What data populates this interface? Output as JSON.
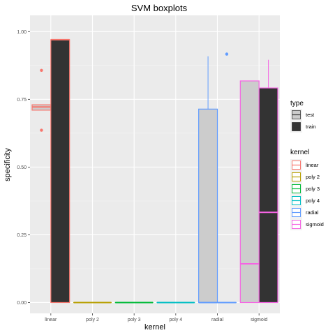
{
  "chart_data": {
    "type": "boxplot",
    "title": "SVM boxplots",
    "xlabel": "kernel",
    "ylabel": "specificity",
    "ylim": [
      -0.04,
      1.06
    ],
    "y_ticks": [
      0,
      0.25,
      0.5,
      0.75,
      1
    ],
    "y_tick_labels": [
      "0.00",
      "0.25",
      "0.50",
      "0.75",
      "1.00"
    ],
    "grid": true,
    "legend_position": "right",
    "categories": [
      "linear",
      "poly 2",
      "poly 3",
      "poly 4",
      "radial",
      "sigmoid"
    ],
    "fill_legend": {
      "title": "type",
      "entries": [
        {
          "label": "test",
          "fill": "#cccccc"
        },
        {
          "label": "train",
          "fill": "#333333"
        }
      ]
    },
    "color_legend": {
      "title": "kernel",
      "entries": [
        {
          "label": "linear",
          "color": "#f8766d"
        },
        {
          "label": "poly 2",
          "color": "#b79f00"
        },
        {
          "label": "poly 3",
          "color": "#00ba38"
        },
        {
          "label": "poly 4",
          "color": "#00bfc4"
        },
        {
          "label": "radial",
          "color": "#619cff"
        },
        {
          "label": "sigmoid",
          "color": "#f564e3"
        }
      ]
    },
    "boxes": [
      {
        "kernel": "linear",
        "type": "test",
        "min": 0.71,
        "q1": 0.71,
        "median": 0.722,
        "q3": 0.73,
        "max": 0.73,
        "outliers": [
          0.857,
          0.636
        ]
      },
      {
        "kernel": "linear",
        "type": "train",
        "min": 0,
        "q1": 0,
        "median": 0.97,
        "q3": 0.97,
        "max": 0.97,
        "outliers": []
      },
      {
        "kernel": "poly 2",
        "type": "test",
        "min": 0,
        "q1": 0,
        "median": 0,
        "q3": 0,
        "max": 0,
        "outliers": []
      },
      {
        "kernel": "poly 2",
        "type": "train",
        "min": 0,
        "q1": 0,
        "median": 0,
        "q3": 0,
        "max": 0,
        "outliers": []
      },
      {
        "kernel": "poly 3",
        "type": "test",
        "min": 0,
        "q1": 0,
        "median": 0,
        "q3": 0,
        "max": 0,
        "outliers": []
      },
      {
        "kernel": "poly 3",
        "type": "train",
        "min": 0,
        "q1": 0,
        "median": 0,
        "q3": 0,
        "max": 0,
        "outliers": []
      },
      {
        "kernel": "poly 4",
        "type": "test",
        "min": 0,
        "q1": 0,
        "median": 0,
        "q3": 0,
        "max": 0,
        "outliers": []
      },
      {
        "kernel": "poly 4",
        "type": "train",
        "min": 0,
        "q1": 0,
        "median": 0,
        "q3": 0,
        "max": 0,
        "outliers": []
      },
      {
        "kernel": "radial",
        "type": "test",
        "min": 0,
        "q1": 0,
        "median": 0,
        "q3": 0.714,
        "max": 0.909,
        "outliers": []
      },
      {
        "kernel": "radial",
        "type": "train",
        "min": 0,
        "q1": 0,
        "median": 0,
        "q3": 0,
        "max": 0,
        "outliers": [
          0.917
        ]
      },
      {
        "kernel": "sigmoid",
        "type": "test",
        "min": 0,
        "q1": 0,
        "median": 0.143,
        "q3": 0.818,
        "max": 0.818,
        "outliers": []
      },
      {
        "kernel": "sigmoid",
        "type": "train",
        "min": 0,
        "q1": 0,
        "median": 0.333,
        "q3": 0.792,
        "max": 0.896,
        "outliers": []
      }
    ]
  }
}
